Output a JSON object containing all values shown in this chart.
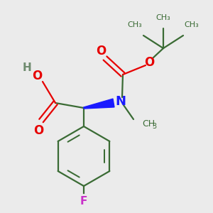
{
  "bg_color": "#ebebeb",
  "bond_color": "#3a6b34",
  "o_color": "#e60000",
  "n_color": "#1a1aff",
  "f_color": "#c832c8",
  "h_color": "#6e8b6e",
  "line_width": 1.6,
  "fig_size": [
    3.0,
    3.0
  ],
  "dpi": 100,
  "xlim": [
    0,
    300
  ],
  "ylim": [
    0,
    300
  ]
}
